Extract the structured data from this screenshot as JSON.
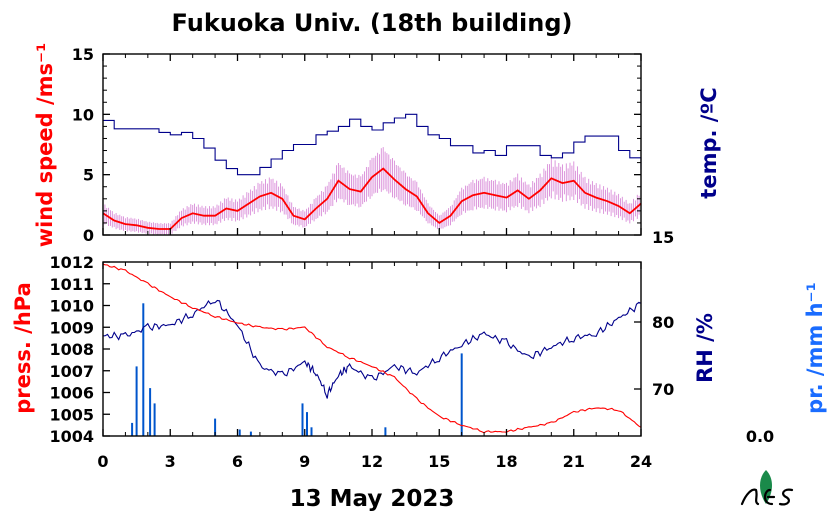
{
  "colors": {
    "wind": "#ff0000",
    "wind_raw": "#cc66cc",
    "temp": "#00008b",
    "pressure": "#ff0000",
    "rh": "#00008b",
    "precip": "#0055cc",
    "precip_label": "#1a6cff",
    "logo_green": "#1a8a4a"
  },
  "chart_data": {
    "title": "Fukuoka Univ. (18th building)",
    "xlabel": "13 May 2023",
    "x_ticks": [
      "0",
      "3",
      "6",
      "9",
      "12",
      "15",
      "18",
      "21",
      "24"
    ],
    "x_range": [
      0,
      24
    ],
    "top_panel": {
      "type": "line",
      "ylabel_left": "wind speed /ms⁻¹",
      "ylabel_right": "temp. /ºC",
      "ylim_left": [
        0,
        15
      ],
      "y_ticks_left": [
        "0",
        "5",
        "10",
        "15"
      ],
      "right_tick_label": "15",
      "series": [
        {
          "name": "wind speed",
          "x": [
            0,
            0.5,
            1,
            1.5,
            2,
            2.5,
            3,
            3.5,
            4,
            4.5,
            5,
            5.5,
            6,
            6.5,
            7,
            7.5,
            8,
            8.5,
            9,
            9.5,
            10,
            10.5,
            11,
            11.5,
            12,
            12.5,
            13,
            13.5,
            14,
            14.5,
            15,
            15.5,
            16,
            16.5,
            17,
            17.5,
            18,
            18.5,
            19,
            19.5,
            20,
            20.5,
            21,
            21.5,
            22,
            22.5,
            23,
            23.5,
            24
          ],
          "values": [
            1.8,
            1.2,
            0.9,
            0.8,
            0.6,
            0.5,
            0.5,
            1.4,
            1.8,
            1.6,
            1.6,
            2.2,
            2.0,
            2.6,
            3.2,
            3.5,
            3.0,
            1.6,
            1.3,
            2.2,
            3.0,
            4.5,
            3.8,
            3.6,
            4.8,
            5.5,
            4.6,
            3.8,
            3.2,
            1.8,
            1.0,
            1.6,
            2.8,
            3.3,
            3.5,
            3.3,
            3.1,
            3.7,
            3.0,
            3.7,
            4.7,
            4.3,
            4.5,
            3.5,
            3.1,
            2.8,
            2.4,
            1.8,
            2.6
          ]
        },
        {
          "name": "temperature (scaled)",
          "x": [
            0,
            0.5,
            1,
            1.5,
            2,
            2.5,
            3,
            3.5,
            4,
            4.5,
            5,
            5.5,
            6,
            6.5,
            7,
            7.5,
            8,
            8.5,
            9,
            9.5,
            10,
            10.5,
            11,
            11.5,
            12,
            12.5,
            13,
            13.5,
            14,
            14.5,
            15,
            15.5,
            16,
            16.5,
            17,
            17.5,
            18,
            18.5,
            19,
            19.5,
            20,
            20.5,
            21,
            21.5,
            22,
            22.5,
            23,
            23.5,
            24
          ],
          "values": [
            9.5,
            8.8,
            8.8,
            8.8,
            8.8,
            8.5,
            8.3,
            8.5,
            8.0,
            7.2,
            6.2,
            5.5,
            5.0,
            5.0,
            5.6,
            6.3,
            7.0,
            7.5,
            7.5,
            8.3,
            8.6,
            9.0,
            9.6,
            9.0,
            8.7,
            9.3,
            9.7,
            10.0,
            9.0,
            8.3,
            8.0,
            7.4,
            7.4,
            6.8,
            7.0,
            6.6,
            7.4,
            7.4,
            7.4,
            6.6,
            6.4,
            6.8,
            7.7,
            8.2,
            8.2,
            8.2,
            7.0,
            6.4,
            5.4
          ]
        }
      ]
    },
    "bottom_panel": {
      "type": "line",
      "ylabel_left": "press. /hPa",
      "ylabel_right": "RH /%",
      "ylabel_far_right": "pr. /mm h⁻¹",
      "ylim_left": [
        1004,
        1012
      ],
      "y_ticks_left": [
        "1004",
        "1005",
        "1006",
        "1007",
        "1008",
        "1009",
        "1010",
        "1011",
        "1012"
      ],
      "y_ticks_right": [
        "70",
        "80"
      ],
      "precip_tick_label": "0.0",
      "series": [
        {
          "name": "pressure",
          "x": [
            0,
            1,
            2,
            3,
            4,
            5,
            6,
            7,
            8,
            9,
            10,
            11,
            12,
            13,
            14,
            15,
            16,
            17,
            18,
            19,
            20,
            21,
            22,
            23,
            24
          ],
          "values": [
            1011.9,
            1011.6,
            1011.0,
            1010.4,
            1009.9,
            1009.5,
            1009.2,
            1009.0,
            1008.9,
            1009.0,
            1008.1,
            1007.6,
            1007.2,
            1006.7,
            1005.7,
            1004.9,
            1004.5,
            1004.2,
            1004.2,
            1004.4,
            1004.6,
            1005.1,
            1005.3,
            1005.2,
            1004.4
          ]
        },
        {
          "name": "relative humidity (scaled)",
          "x": [
            0,
            1,
            2,
            3,
            4,
            5,
            6,
            7,
            8,
            9,
            9.5,
            10,
            10.5,
            11,
            12,
            13,
            14,
            15,
            16,
            17,
            18,
            19,
            20,
            21,
            22,
            23,
            24
          ],
          "values": [
            1008.6,
            1008.6,
            1009.0,
            1009.1,
            1009.6,
            1010.3,
            1009.1,
            1007.2,
            1006.8,
            1007.4,
            1006.9,
            1005.9,
            1006.8,
            1007.2,
            1006.6,
            1007.2,
            1006.9,
            1007.6,
            1008.2,
            1008.7,
            1008.3,
            1007.6,
            1008.1,
            1008.5,
            1008.7,
            1009.4,
            1010.1
          ]
        },
        {
          "name": "precipitation",
          "type": "bar",
          "x": [
            1.3,
            1.5,
            1.8,
            2.1,
            2.3,
            5.0,
            6.1,
            6.6,
            8.9,
            9.1,
            9.3,
            12.6,
            16.0
          ],
          "values": [
            0.6,
            3.2,
            6.1,
            2.2,
            1.5,
            0.8,
            0.3,
            0.2,
            1.5,
            1.1,
            0.4,
            0.4,
            3.8
          ]
        }
      ]
    }
  },
  "logo": {
    "alt_text": "MES"
  }
}
